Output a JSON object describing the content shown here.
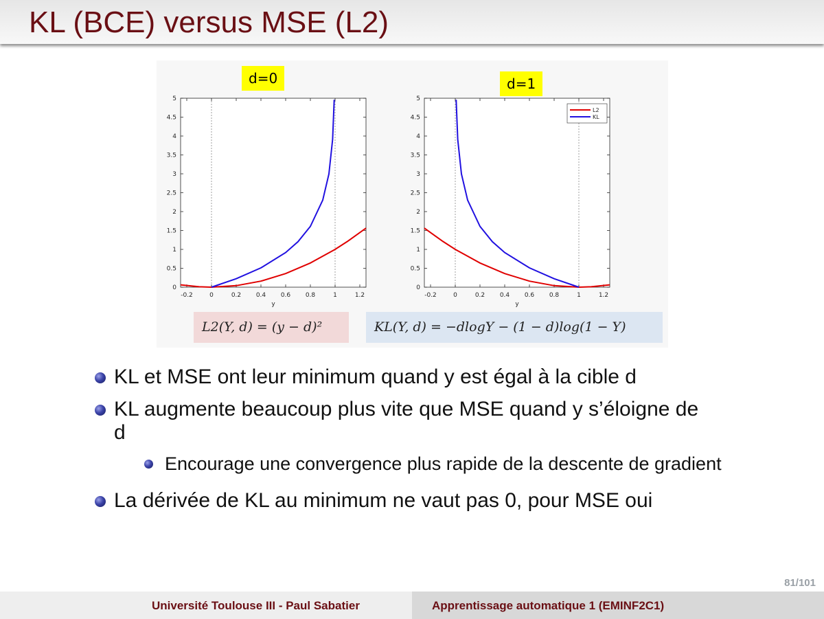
{
  "slide": {
    "title": "KL (BCE) versus MSE (L2)",
    "page": "81/101"
  },
  "footer": {
    "left": "Université Toulouse III - Paul Sabatier",
    "right": "Apprentissage automatique 1 (EMINF2C1)"
  },
  "figure": {
    "left_label": "d=0",
    "right_label": "d=1",
    "formula_l2": "L2(Y, d) = (y − d)²",
    "formula_kl": "KL(Y, d) = −dlogY − (1 − d)log(1 − Y)"
  },
  "bullets": [
    "KL et MSE ont leur minimum quand y est égal à la cible d",
    "KL augmente beaucoup plus vite que MSE quand y s’éloigne de d"
  ],
  "sub_bullets": [
    "Encourage une convergence plus rapide de la descente de gradient"
  ],
  "bullets_end": [
    "La dérivée de KL au minimum ne vaut pas 0, pour MSE oui"
  ],
  "chart_data": [
    {
      "type": "line",
      "title": "d=0",
      "xlabel": "y",
      "ylabel": "",
      "xlim": [
        -0.25,
        1.25
      ],
      "ylim": [
        0,
        5
      ],
      "x_ticks": [
        "-0.2",
        "0",
        "0.2",
        "0.4",
        "0.6",
        "0.8",
        "1",
        "1.2"
      ],
      "y_ticks": [
        "0",
        "0.5",
        "1",
        "1.5",
        "2",
        "2.5",
        "3",
        "3.5",
        "4",
        "4.5",
        "5"
      ],
      "series": [
        {
          "color": "#e00000",
          "x": [
            -0.25,
            -0.1,
            0,
            0.2,
            0.4,
            0.6,
            0.8,
            1.0,
            1.1,
            1.25
          ],
          "values": [
            0.0625,
            0.01,
            0,
            0.04,
            0.16,
            0.36,
            0.64,
            1.0,
            1.21,
            1.5625
          ]
        },
        {
          "color": "#2010e0",
          "x": [
            0,
            0.2,
            0.4,
            0.6,
            0.7,
            0.8,
            0.9,
            0.95,
            0.98,
            0.993
          ],
          "values": [
            0,
            0.223,
            0.511,
            0.916,
            1.204,
            1.609,
            2.303,
            2.996,
            3.912,
            4.96
          ]
        }
      ],
      "reference_lines_x": [
        0,
        1
      ]
    },
    {
      "type": "line",
      "title": "d=1",
      "xlabel": "y",
      "ylabel": "",
      "xlim": [
        -0.25,
        1.25
      ],
      "ylim": [
        0,
        5
      ],
      "legend": [
        "L2",
        "KL"
      ],
      "legend_position": "top-right",
      "x_ticks": [
        "-0.2",
        "0",
        "0.2",
        "0.4",
        "0.6",
        "0.8",
        "1",
        "1.2"
      ],
      "y_ticks": [
        "0",
        "0.5",
        "1",
        "1.5",
        "2",
        "2.5",
        "3",
        "3.5",
        "4",
        "4.5",
        "5"
      ],
      "series": [
        {
          "name": "L2",
          "color": "#e00000",
          "x": [
            -0.25,
            -0.1,
            0,
            0.2,
            0.4,
            0.6,
            0.8,
            1.0,
            1.1,
            1.25
          ],
          "values": [
            1.5625,
            1.21,
            1.0,
            0.64,
            0.36,
            0.16,
            0.04,
            0,
            0.01,
            0.0625
          ]
        },
        {
          "name": "KL",
          "color": "#2010e0",
          "x": [
            0.007,
            0.02,
            0.05,
            0.1,
            0.2,
            0.3,
            0.4,
            0.6,
            0.8,
            1.0
          ],
          "values": [
            4.96,
            3.912,
            2.996,
            2.303,
            1.609,
            1.204,
            0.916,
            0.511,
            0.223,
            0
          ]
        }
      ],
      "reference_lines_x": [
        0,
        1
      ]
    }
  ]
}
